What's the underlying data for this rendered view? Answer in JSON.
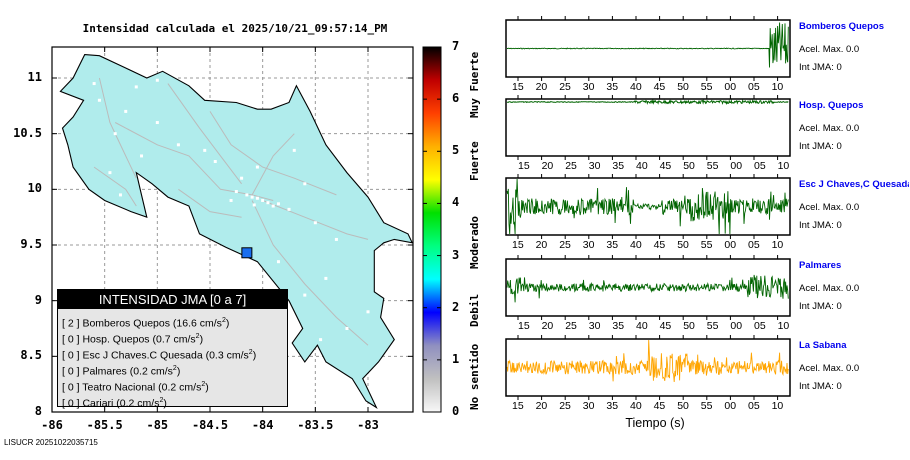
{
  "chart_data": [
    {
      "type": "heatmap",
      "title": "Intensidad calculada el 2025/10/21_09:57:14_PM",
      "xlabel": "",
      "ylabel": "",
      "xlim": [
        -86,
        -82.7
      ],
      "ylim": [
        8,
        11.3
      ],
      "x_ticks": [
        "-86",
        "-85.5",
        "-85",
        "-84.5",
        "-84",
        "-83.5",
        "-83"
      ],
      "x_tick_values": [
        -86,
        -85.5,
        -85,
        -84.5,
        -84,
        -83.5,
        -83
      ],
      "y_ticks": [
        "8",
        "8.5",
        "9",
        "9.5",
        "10",
        "10.5",
        "11"
      ],
      "y_tick_values": [
        8,
        8.5,
        9,
        9.5,
        10,
        10.5,
        11
      ],
      "grid": true,
      "land_color": "#b0ecec",
      "marker": {
        "lon": -84.15,
        "lat": 9.43,
        "color": "#1a6ef0"
      },
      "colorbar": {
        "range": [
          0,
          7
        ],
        "ticks": [
          "0",
          "1",
          "2",
          "3",
          "4",
          "5",
          "6",
          "7"
        ],
        "categories": [
          "No sentido",
          "Debil",
          "Moderado",
          "Fuerte",
          "Muy Fuerte"
        ],
        "colors": [
          "#f8f8f8",
          "#c0c0c0",
          "#9090c0",
          "#0000ff",
          "#00ffff",
          "#00ff80",
          "#00e000",
          "#ffff00",
          "#ffb000",
          "#ff4000",
          "#c00000",
          "#000000"
        ]
      },
      "legend": {
        "title": "INTENSIDAD JMA [0 a 7]",
        "placement": "bottom-left",
        "items": [
          {
            "intensity": "[ 2 ]",
            "station": "Bomberos Quepos",
            "accel": "(16.6 cm/s",
            "sup": "2",
            "close": ")"
          },
          {
            "intensity": "[ 0 ]",
            "station": "Hosp. Quepos",
            "accel": "(0.7 cm/s",
            "sup": "2",
            "close": ")"
          },
          {
            "intensity": "[ 0 ]",
            "station": "Esc J Chaves.C Quesada",
            "accel": "(0.3 cm/s",
            "sup": "2",
            "close": ")"
          },
          {
            "intensity": "[ 0 ]",
            "station": "Palmares",
            "accel": "(0.2 cm/s",
            "sup": "2",
            "close": ")"
          },
          {
            "intensity": "[ 0 ]",
            "station": "Teatro Nacional",
            "accel": "(0.2 cm/s",
            "sup": "2",
            "close": ")"
          },
          {
            "intensity": "[ 0 ]",
            "station": "Cariari",
            "accel": "(0.2 cm/s",
            "sup": "2",
            "close": ")"
          }
        ]
      }
    },
    {
      "type": "line",
      "title": "",
      "xlabel": "Tiempo (s)",
      "x_ticks": [
        "15",
        "20",
        "25",
        "30",
        "35",
        "40",
        "45",
        "50",
        "55",
        "00",
        "05",
        "10"
      ],
      "series": [
        {
          "name": "Bomberos Quepos",
          "accel_label": "Acel. Max. 0.0",
          "jma_label": "Int JMA: 0",
          "color": "#006400",
          "pattern": "quiet-then-burst-end"
        },
        {
          "name": "Hosp. Quepos",
          "accel_label": "Acel. Max. 0.0",
          "jma_label": "Int JMA: 0",
          "color": "#006400",
          "pattern": "flat-top"
        },
        {
          "name": "Esc J Chaves,C Quesada",
          "accel_label": "Acel. Max. 0.0",
          "jma_label": "Int JMA: 0",
          "color": "#006400",
          "pattern": "noise-high"
        },
        {
          "name": "Palmares",
          "accel_label": "Acel. Max. 0.0",
          "jma_label": "Int JMA: 0",
          "color": "#006400",
          "pattern": "noise-mid"
        },
        {
          "name": "La Sabana",
          "accel_label": "Acel. Max. 0.0",
          "jma_label": "Int JMA: 0",
          "color": "#ffa500",
          "pattern": "noise-orange"
        }
      ]
    }
  ],
  "footer": "LISUCR 20251022035715"
}
